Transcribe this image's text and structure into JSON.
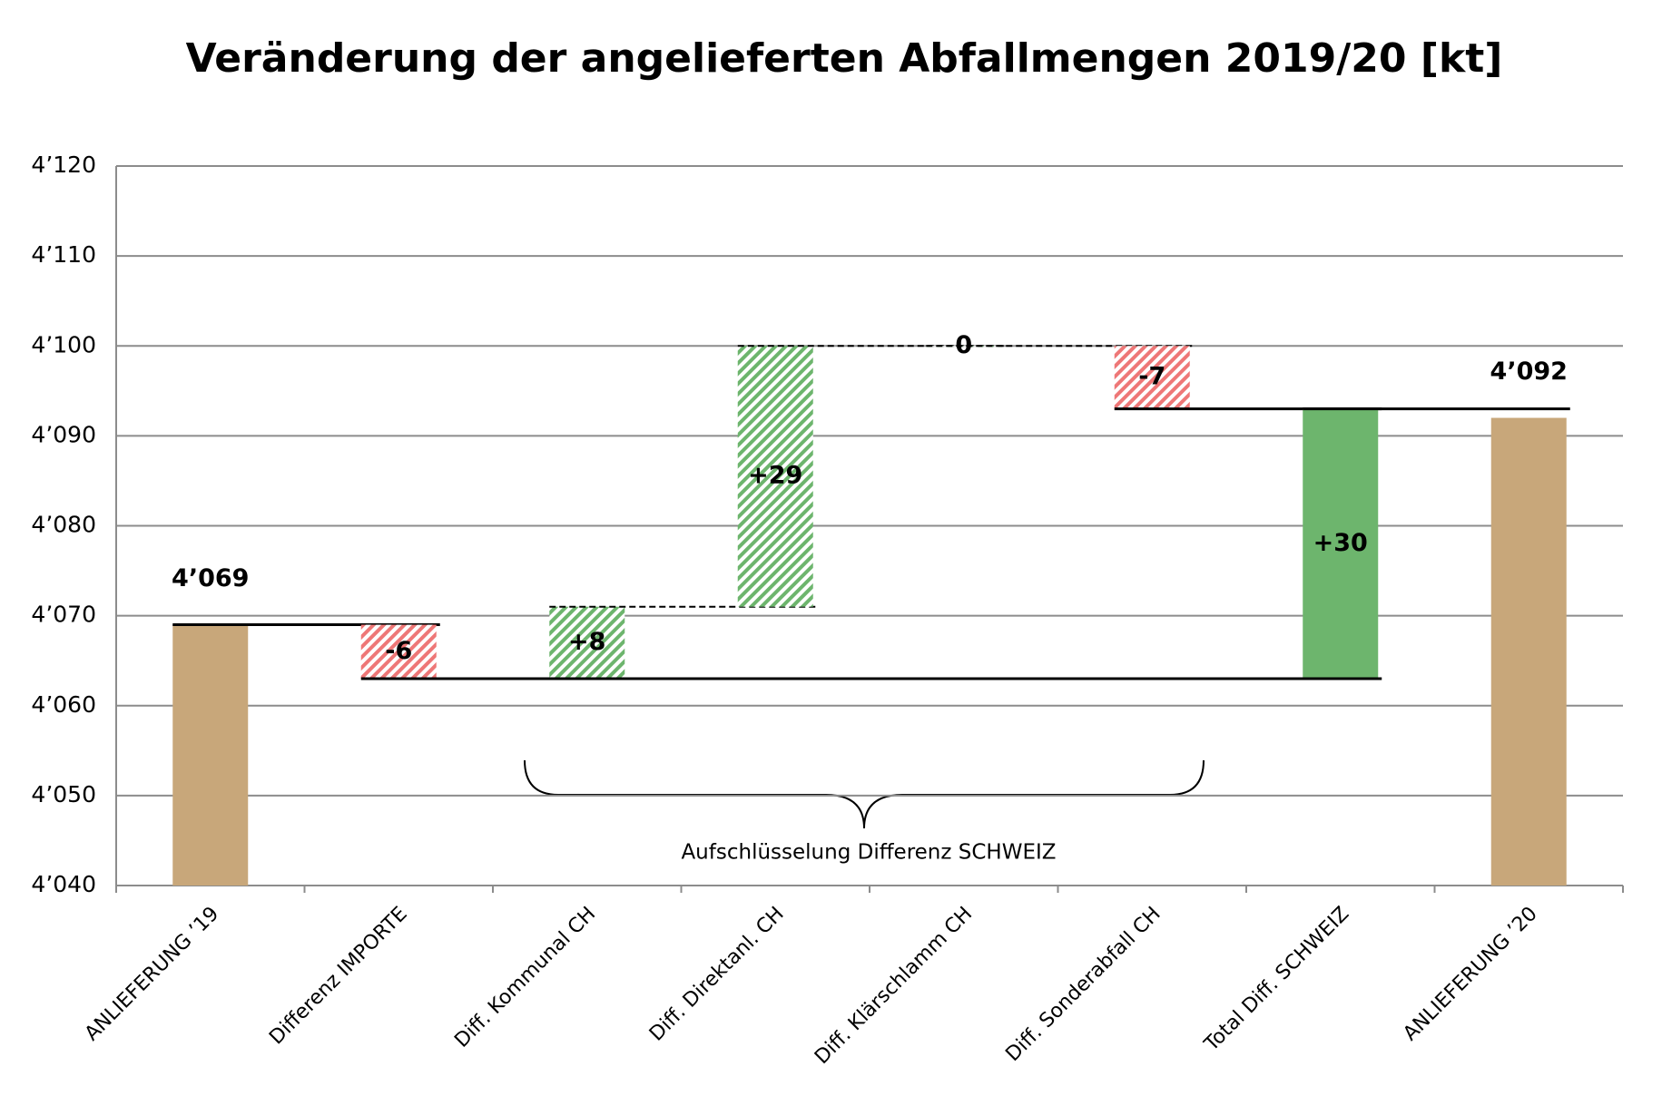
{
  "chart_data": {
    "type": "waterfall",
    "title": "Veränderung der angelieferten Abfallmengen 2019/20 [kt]",
    "categories": [
      "ANLIEFERUNG ’19",
      "Differenz IMPORTE",
      "Diff. Kommunal CH",
      "Diff. Direktanl. CH",
      "Diff. Klärschlamm CH",
      "Diff. Sonderabfall CH",
      "Total Diff. SCHWEIZ",
      "ANLIEFERUNG ’20"
    ],
    "values": [
      4069,
      -6,
      8,
      29,
      0,
      -7,
      30,
      4092
    ],
    "value_labels": [
      "4’069",
      "-6",
      "+8",
      "+29",
      "0",
      "-7",
      "+30",
      "4’092"
    ],
    "measure": [
      "absolute",
      "relative",
      "relative",
      "relative",
      "relative",
      "relative",
      "subtotal",
      "absolute"
    ],
    "colors": {
      "absolute": "#c8a77a",
      "increase": "#6db56d",
      "decrease": "#ee7777",
      "subtotal": "#6db56d"
    },
    "ylim": [
      4040,
      4120
    ],
    "yticks": [
      {
        "value": 4040,
        "label": "4’040"
      },
      {
        "value": 4050,
        "label": "4’050"
      },
      {
        "value": 4060,
        "label": "4’060"
      },
      {
        "value": 4070,
        "label": "4’070"
      },
      {
        "value": 4080,
        "label": "4’080"
      },
      {
        "value": 4090,
        "label": "4’090"
      },
      {
        "value": 4100,
        "label": "4’100"
      },
      {
        "value": 4110,
        "label": "4’110"
      },
      {
        "value": 4120,
        "label": "4’120"
      }
    ],
    "grid": true,
    "annotation": "Aufschlüsselung Differenz SCHWEIZ"
  }
}
